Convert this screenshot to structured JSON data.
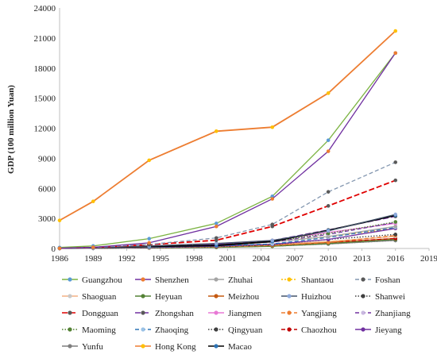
{
  "chart_data": {
    "type": "line",
    "title": "",
    "xlabel": "",
    "ylabel": "GDP (100 million Yuan)",
    "x_ticks": [
      1986,
      1989,
      1992,
      1995,
      1998,
      2001,
      2004,
      2007,
      2010,
      2013,
      2016,
      2019
    ],
    "xlim": [
      1986,
      2019
    ],
    "y_ticks": [
      0,
      3000,
      6000,
      9000,
      12000,
      15000,
      18000,
      21000,
      24000
    ],
    "y_tick_labels": [
      "0",
      "3000",
      "6000",
      "9000",
      "12000",
      "15000",
      "18000",
      "21000",
      "24000"
    ],
    "ylim": [
      0,
      24000
    ],
    "grid": false,
    "legend_position": "bottom",
    "legend_columns": 5,
    "series": [
      {
        "name": "Guangzhou",
        "color": "#7cb342",
        "marker_color": "#5b9bd5",
        "dash": "solid",
        "x": [
          1986,
          1989,
          1994,
          2000,
          2005,
          2010,
          2016
        ],
        "values": [
          100,
          250,
          980,
          2500,
          5200,
          10800,
          19500
        ]
      },
      {
        "name": "Shenzhen",
        "color": "#7030a0",
        "marker_color": "#ed7d31",
        "dash": "solid",
        "x": [
          1986,
          1989,
          1994,
          2000,
          2005,
          2010,
          2016
        ],
        "values": [
          20,
          120,
          560,
          2200,
          4950,
          9700,
          19500
        ]
      },
      {
        "name": "Zhuhai",
        "color": "#a5a5a5",
        "marker_color": "#a5a5a5",
        "dash": "solid",
        "x": [
          1986,
          1989,
          1994,
          2000,
          2005,
          2010,
          2016
        ],
        "values": [
          10,
          30,
          150,
          330,
          640,
          1200,
          2200
        ]
      },
      {
        "name": "Shantaou",
        "color": "#ffc000",
        "marker_color": "#ffc000",
        "dash": "dot",
        "x": [
          1986,
          1989,
          1994,
          2000,
          2005,
          2010,
          2016
        ],
        "values": [
          30,
          80,
          220,
          500,
          650,
          1200,
          2000
        ]
      },
      {
        "name": "Foshan",
        "color": "#8497b0",
        "marker_color": "#595959",
        "dash": "dash",
        "x": [
          1986,
          1989,
          1994,
          2000,
          2005,
          2010,
          2016
        ],
        "values": [
          40,
          110,
          400,
          1050,
          2400,
          5650,
          8600
        ]
      },
      {
        "name": "Shaoguan",
        "color": "#f4b183",
        "marker_color": "#c9c9c9",
        "dash": "solid",
        "x": [
          1986,
          1989,
          1994,
          2000,
          2005,
          2010,
          2016
        ],
        "values": [
          20,
          50,
          130,
          250,
          400,
          700,
          1200
        ]
      },
      {
        "name": "Heyuan",
        "color": "#548235",
        "marker_color": "#548235",
        "dash": "solid",
        "x": [
          1986,
          1989,
          1994,
          2000,
          2005,
          2010,
          2016
        ],
        "values": [
          10,
          20,
          50,
          110,
          220,
          500,
          900
        ]
      },
      {
        "name": "Meizhou",
        "color": "#c55a11",
        "marker_color": "#c55a11",
        "dash": "solid",
        "x": [
          1986,
          1989,
          1994,
          2000,
          2005,
          2010,
          2016
        ],
        "values": [
          15,
          35,
          90,
          200,
          320,
          600,
          1000
        ]
      },
      {
        "name": "Huizhou",
        "color": "#44546a",
        "marker_color": "#8faadc",
        "dash": "solid",
        "x": [
          1986,
          1989,
          1994,
          2000,
          2005,
          2010,
          2016
        ],
        "values": [
          20,
          60,
          250,
          500,
          800,
          1750,
          3400
        ]
      },
      {
        "name": "Shanwei",
        "color": "#404040",
        "marker_color": "#404040",
        "dash": "dotted",
        "x": [
          1986,
          1989,
          1994,
          2000,
          2005,
          2010,
          2016
        ],
        "values": [
          10,
          25,
          60,
          130,
          230,
          450,
          800
        ]
      },
      {
        "name": "Dongguan",
        "color": "#e00000",
        "marker_color": "#595959",
        "dash": "longdash",
        "x": [
          1986,
          1989,
          1994,
          2000,
          2005,
          2010,
          2016
        ],
        "values": [
          40,
          110,
          380,
          820,
          2200,
          4250,
          6800
        ]
      },
      {
        "name": "Zhongshan",
        "color": "#7030a0",
        "marker_color": "#595959",
        "dash": "longdash",
        "x": [
          1986,
          1989,
          1994,
          2000,
          2005,
          2010,
          2016
        ],
        "values": [
          30,
          70,
          250,
          400,
          800,
          1850,
          3200
        ]
      },
      {
        "name": "Jiangmen",
        "color": "#e879d5",
        "marker_color": "#e879d5",
        "dash": "solid",
        "x": [
          1986,
          1989,
          1994,
          2000,
          2005,
          2010,
          2016
        ],
        "values": [
          40,
          90,
          250,
          480,
          800,
          1600,
          2500
        ]
      },
      {
        "name": "Yangjiang",
        "color": "#ed7d31",
        "marker_color": "#ed7d31",
        "dash": "dash",
        "x": [
          1986,
          1989,
          1994,
          2000,
          2005,
          2010,
          2016
        ],
        "values": [
          10,
          30,
          80,
          170,
          300,
          600,
          1300
        ]
      },
      {
        "name": "Zhanjiang",
        "color": "#7030a0",
        "marker_color": "#c9b8e0",
        "dash": "dash",
        "x": [
          1986,
          1989,
          1994,
          2000,
          2005,
          2010,
          2016
        ],
        "values": [
          30,
          70,
          200,
          400,
          650,
          1400,
          2600
        ]
      },
      {
        "name": "Maoming",
        "color": "#548235",
        "marker_color": "#548235",
        "dash": "dotted",
        "x": [
          1986,
          1989,
          1994,
          2000,
          2005,
          2010,
          2016
        ],
        "values": [
          25,
          70,
          200,
          450,
          700,
          1500,
          2650
        ]
      },
      {
        "name": "Zhaoqing",
        "color": "#2e75b6",
        "marker_color": "#9bc2e6",
        "dash": "dash",
        "x": [
          1986,
          1989,
          1994,
          2000,
          2005,
          2010,
          2016
        ],
        "values": [
          15,
          40,
          120,
          280,
          450,
          1100,
          2100
        ]
      },
      {
        "name": "Qingyuan",
        "color": "#404040",
        "marker_color": "#404040",
        "dash": "dotted",
        "x": [
          1986,
          1989,
          1994,
          2000,
          2005,
          2010,
          2016
        ],
        "values": [
          15,
          35,
          90,
          200,
          380,
          900,
          1400
        ]
      },
      {
        "name": "Chaozhou",
        "color": "#c00000",
        "marker_color": "#c00000",
        "dash": "dash",
        "x": [
          1986,
          1989,
          1994,
          2000,
          2005,
          2010,
          2016
        ],
        "values": [
          10,
          30,
          80,
          200,
          330,
          600,
          1000
        ]
      },
      {
        "name": "Jieyang",
        "color": "#7030a0",
        "marker_color": "#7030a0",
        "dash": "solid",
        "x": [
          1986,
          1989,
          1994,
          2000,
          2005,
          2010,
          2016
        ],
        "values": [
          10,
          30,
          100,
          230,
          420,
          900,
          2000
        ]
      },
      {
        "name": "Yunfu",
        "color": "#7f7f7f",
        "marker_color": "#7f7f7f",
        "dash": "solid",
        "x": [
          1986,
          1989,
          1994,
          2000,
          2005,
          2010,
          2016
        ],
        "values": [
          8,
          20,
          60,
          130,
          230,
          450,
          800
        ]
      },
      {
        "name": "Hong Kong",
        "color": "#ed7d31",
        "marker_color": "#ffc000",
        "dash": "solid",
        "x": [
          1986,
          1989,
          1994,
          2000,
          2005,
          2010,
          2016
        ],
        "values": [
          2800,
          4700,
          8800,
          11700,
          12100,
          15500,
          21700
        ]
      },
      {
        "name": "Macao",
        "color": "#000000",
        "marker_color": "#2e75b6",
        "dash": "solid",
        "x": [
          1986,
          1989,
          1994,
          2000,
          2005,
          2010,
          2016
        ],
        "values": [
          30,
          80,
          200,
          300,
          700,
          1800,
          3300
        ]
      }
    ]
  }
}
